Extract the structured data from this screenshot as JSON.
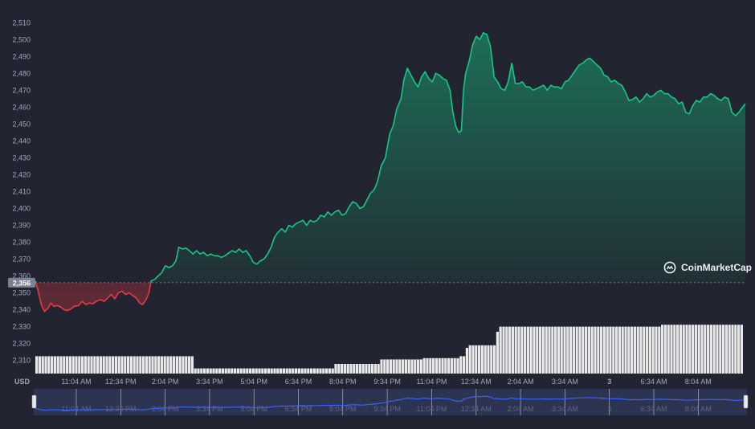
{
  "chart_data": {
    "type": "area",
    "currency_label": "USD",
    "y_ticks": [
      2310,
      2320,
      2330,
      2340,
      2350,
      2360,
      2370,
      2380,
      2390,
      2400,
      2410,
      2420,
      2430,
      2440,
      2450,
      2460,
      2470,
      2480,
      2490,
      2500,
      2510
    ],
    "y_tick_labels": [
      "2,310",
      "2,320",
      "2,330",
      "2,340",
      "2,350",
      "2,360",
      "2,370",
      "2,380",
      "2,390",
      "2,400",
      "2,410",
      "2,420",
      "2,430",
      "2,440",
      "2,450",
      "2,460",
      "2,470",
      "2,480",
      "2,490",
      "2,500",
      "2,510"
    ],
    "ylim": [
      2306,
      2513
    ],
    "reference_value": 2356,
    "reference_label": "2,356",
    "x_labels": [
      "11:04 AM",
      "12:34 PM",
      "2:04 PM",
      "3:34 PM",
      "5:04 PM",
      "6:34 PM",
      "8:04 PM",
      "9:34 PM",
      "11:04 PM",
      "12:34 AM",
      "2:04 AM",
      "3:34 AM",
      "3",
      "6:34 AM",
      "8:04 AM"
    ],
    "navigator_labels": [
      "11:04 AM",
      "12:34 PM",
      "2:04 PM",
      "3:34 PM",
      "5:04 PM",
      "6:34 PM",
      "8:04 PM",
      "9:34 PM",
      "11:04 PM",
      "12:34 AM",
      "2:04 AM",
      "3:34 AM",
      "3",
      "6:34 AM",
      "8:04 AM"
    ],
    "x_range": [
      0,
      100
    ],
    "price_points": [
      [
        0,
        2357
      ],
      [
        0.4,
        2351
      ],
      [
        0.9,
        2342
      ],
      [
        1.3,
        2339
      ],
      [
        1.8,
        2341
      ],
      [
        2.2,
        2344
      ],
      [
        2.6,
        2342
      ],
      [
        3.1,
        2342.5
      ],
      [
        3.6,
        2341.5
      ],
      [
        4.1,
        2340
      ],
      [
        4.5,
        2339.5
      ],
      [
        5,
        2340.5
      ],
      [
        5.5,
        2342
      ],
      [
        6.1,
        2342.5
      ],
      [
        6.6,
        2345
      ],
      [
        7.1,
        2343
      ],
      [
        7.6,
        2344
      ],
      [
        8.1,
        2343.5
      ],
      [
        8.6,
        2345
      ],
      [
        9.2,
        2346
      ],
      [
        9.7,
        2345
      ],
      [
        10.2,
        2347
      ],
      [
        10.7,
        2349
      ],
      [
        11.2,
        2346.5
      ],
      [
        11.7,
        2350
      ],
      [
        12.2,
        2351
      ],
      [
        12.7,
        2349
      ],
      [
        13.2,
        2350
      ],
      [
        13.7,
        2348.5
      ],
      [
        14.2,
        2347
      ],
      [
        14.7,
        2344
      ],
      [
        15.1,
        2343
      ],
      [
        15.6,
        2346
      ],
      [
        16,
        2350
      ],
      [
        16.3,
        2357
      ],
      [
        16.8,
        2358
      ],
      [
        17.3,
        2360
      ],
      [
        17.8,
        2362
      ],
      [
        18.3,
        2366
      ],
      [
        18.8,
        2365
      ],
      [
        19.3,
        2366
      ],
      [
        19.8,
        2369
      ],
      [
        20.2,
        2377
      ],
      [
        20.7,
        2376
      ],
      [
        21.2,
        2376.5
      ],
      [
        21.7,
        2375
      ],
      [
        22.2,
        2373
      ],
      [
        22.7,
        2375
      ],
      [
        23.2,
        2373
      ],
      [
        23.7,
        2374
      ],
      [
        24.2,
        2372
      ],
      [
        24.7,
        2373
      ],
      [
        25.2,
        2372
      ],
      [
        25.7,
        2372
      ],
      [
        26.2,
        2371
      ],
      [
        26.7,
        2372
      ],
      [
        27.2,
        2373.5
      ],
      [
        27.7,
        2375
      ],
      [
        28.2,
        2374
      ],
      [
        28.7,
        2376
      ],
      [
        29.2,
        2374
      ],
      [
        29.7,
        2375
      ],
      [
        30.2,
        2372
      ],
      [
        30.7,
        2368
      ],
      [
        31.2,
        2367
      ],
      [
        31.7,
        2369
      ],
      [
        32.2,
        2370
      ],
      [
        32.7,
        2373
      ],
      [
        33.2,
        2377
      ],
      [
        33.7,
        2383
      ],
      [
        34.2,
        2386
      ],
      [
        34.7,
        2388
      ],
      [
        35.2,
        2386
      ],
      [
        35.7,
        2390
      ],
      [
        36.2,
        2389
      ],
      [
        36.7,
        2391
      ],
      [
        37.2,
        2392
      ],
      [
        37.7,
        2393
      ],
      [
        38.2,
        2390
      ],
      [
        38.7,
        2393
      ],
      [
        39.2,
        2392
      ],
      [
        39.7,
        2393
      ],
      [
        40.2,
        2396
      ],
      [
        40.7,
        2395
      ],
      [
        41.2,
        2398
      ],
      [
        41.7,
        2396
      ],
      [
        42.2,
        2398
      ],
      [
        42.7,
        2399
      ],
      [
        43.2,
        2396
      ],
      [
        43.7,
        2397
      ],
      [
        44.2,
        2401
      ],
      [
        44.7,
        2404
      ],
      [
        45.2,
        2403
      ],
      [
        45.7,
        2400
      ],
      [
        46.2,
        2401
      ],
      [
        46.7,
        2405
      ],
      [
        47.2,
        2409
      ],
      [
        47.7,
        2411
      ],
      [
        48.2,
        2416
      ],
      [
        48.7,
        2425
      ],
      [
        49.3,
        2430
      ],
      [
        49.9,
        2444
      ],
      [
        50.4,
        2449
      ],
      [
        50.9,
        2459
      ],
      [
        51.5,
        2465
      ],
      [
        51.9,
        2476
      ],
      [
        52.4,
        2483
      ],
      [
        52.9,
        2479
      ],
      [
        53.4,
        2475
      ],
      [
        53.9,
        2472
      ],
      [
        54.4,
        2478
      ],
      [
        54.9,
        2481
      ],
      [
        55.4,
        2477
      ],
      [
        55.9,
        2475
      ],
      [
        56.4,
        2480
      ],
      [
        56.9,
        2479
      ],
      [
        57.4,
        2477
      ],
      [
        57.9,
        2476
      ],
      [
        58.4,
        2470
      ],
      [
        58.8,
        2457
      ],
      [
        59.2,
        2449
      ],
      [
        59.6,
        2445
      ],
      [
        60,
        2446
      ],
      [
        60.3,
        2470
      ],
      [
        60.6,
        2480
      ],
      [
        61.1,
        2487
      ],
      [
        61.6,
        2497
      ],
      [
        62.1,
        2502
      ],
      [
        62.6,
        2500
      ],
      [
        63.1,
        2504
      ],
      [
        63.6,
        2503
      ],
      [
        64.1,
        2496
      ],
      [
        64.6,
        2478
      ],
      [
        65.1,
        2475
      ],
      [
        65.6,
        2471
      ],
      [
        66.1,
        2470
      ],
      [
        66.6,
        2475
      ],
      [
        67.1,
        2486
      ],
      [
        67.6,
        2474
      ],
      [
        68.1,
        2474
      ],
      [
        68.6,
        2475
      ],
      [
        69.1,
        2472
      ],
      [
        69.6,
        2472
      ],
      [
        70.1,
        2470
      ],
      [
        70.6,
        2471
      ],
      [
        71.1,
        2472
      ],
      [
        71.6,
        2473
      ],
      [
        72.1,
        2470
      ],
      [
        72.6,
        2473
      ],
      [
        73.1,
        2472
      ],
      [
        73.6,
        2472
      ],
      [
        74.1,
        2471
      ],
      [
        74.6,
        2475
      ],
      [
        75.1,
        2476
      ],
      [
        75.6,
        2479
      ],
      [
        76.1,
        2482
      ],
      [
        76.6,
        2485
      ],
      [
        77.1,
        2486
      ],
      [
        77.6,
        2488
      ],
      [
        78.1,
        2489
      ],
      [
        78.6,
        2487
      ],
      [
        79.1,
        2485
      ],
      [
        79.6,
        2483
      ],
      [
        80.1,
        2479
      ],
      [
        80.6,
        2478
      ],
      [
        81.1,
        2475
      ],
      [
        81.6,
        2476
      ],
      [
        82.1,
        2474
      ],
      [
        82.6,
        2473
      ],
      [
        83.1,
        2469
      ],
      [
        83.6,
        2464
      ],
      [
        84.1,
        2464.5
      ],
      [
        84.6,
        2466
      ],
      [
        85.1,
        2463
      ],
      [
        85.6,
        2465
      ],
      [
        86.1,
        2468
      ],
      [
        86.6,
        2466
      ],
      [
        87.1,
        2467
      ],
      [
        87.6,
        2469
      ],
      [
        88.1,
        2470
      ],
      [
        88.6,
        2468
      ],
      [
        89.1,
        2468
      ],
      [
        89.6,
        2466
      ],
      [
        90.1,
        2465
      ],
      [
        90.6,
        2462
      ],
      [
        91.1,
        2463
      ],
      [
        91.6,
        2457
      ],
      [
        92.1,
        2456
      ],
      [
        92.6,
        2461
      ],
      [
        93.1,
        2464
      ],
      [
        93.6,
        2463
      ],
      [
        94.1,
        2466
      ],
      [
        94.6,
        2466
      ],
      [
        95.1,
        2468
      ],
      [
        95.6,
        2467
      ],
      [
        96.1,
        2465
      ],
      [
        96.6,
        2464
      ],
      [
        97.1,
        2466
      ],
      [
        97.6,
        2465
      ],
      [
        98.1,
        2457
      ],
      [
        98.6,
        2455
      ],
      [
        99.1,
        2457
      ],
      [
        99.6,
        2460
      ],
      [
        100,
        2462
      ]
    ],
    "volume_segments": [
      {
        "from": 0,
        "to": 22.1,
        "level": 0.27
      },
      {
        "from": 22.1,
        "to": 42.1,
        "level": 0.08
      },
      {
        "from": 42.1,
        "to": 48.2,
        "level": 0.15
      },
      {
        "from": 48.2,
        "to": 54.2,
        "level": 0.22
      },
      {
        "from": 54.2,
        "to": 59.6,
        "level": 0.24
      },
      {
        "from": 59.6,
        "to": 60.4,
        "level": 0.27
      },
      {
        "from": 60.4,
        "to": 61.0,
        "level": 0.4
      },
      {
        "from": 61.0,
        "to": 64.6,
        "level": 0.44
      },
      {
        "from": 64.6,
        "to": 65.2,
        "level": 0.65
      },
      {
        "from": 65.2,
        "to": 87.8,
        "level": 0.73
      },
      {
        "from": 87.8,
        "to": 100,
        "level": 0.76
      }
    ],
    "colors": {
      "up": "#16c784",
      "down": "#ea3943",
      "navigator_line": "#3861fb",
      "background": "#222531",
      "label": "#a1a7bb",
      "volume": "#f2f3f6"
    },
    "watermark": "CoinMarketCap"
  }
}
